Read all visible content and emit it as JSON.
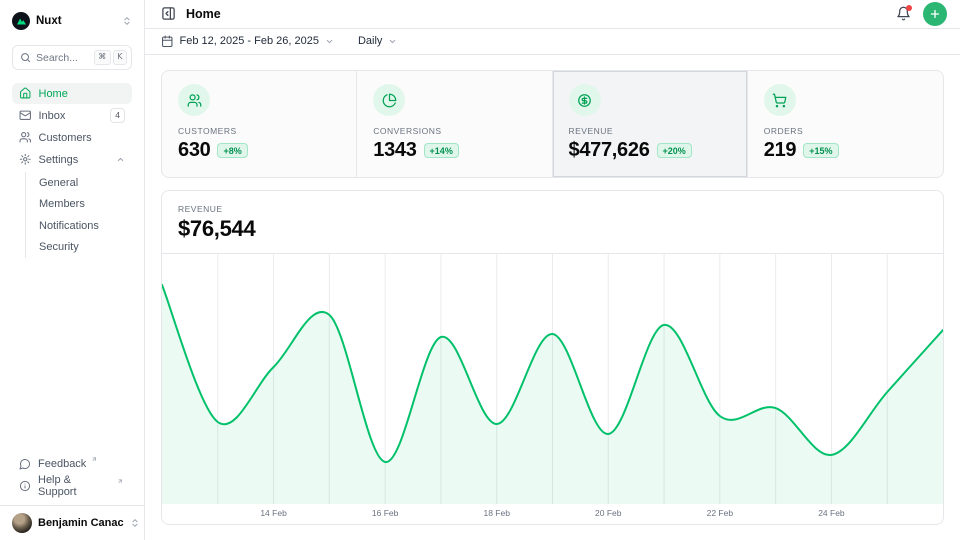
{
  "colors": {
    "primary": "#00C16A",
    "primary_text": "#00A155",
    "logo_bg": "#0E131B",
    "logo_green": "#00DC82",
    "badge_bg": "#E0F6EA",
    "notification_dot": "#EF4444",
    "border": "#E5E7EB",
    "selected_card_bg": "#F3F4F5"
  },
  "sidebar": {
    "workspace": {
      "name": "Nuxt"
    },
    "search": {
      "placeholder": "Search...",
      "kbd": [
        "⌘",
        "K"
      ]
    },
    "nav": [
      {
        "label": "Home",
        "icon": "home-icon",
        "active": true
      },
      {
        "label": "Inbox",
        "icon": "mail-icon",
        "badge": "4"
      },
      {
        "label": "Customers",
        "icon": "users-icon"
      },
      {
        "label": "Settings",
        "icon": "gear-icon",
        "expanded": true,
        "children": [
          "General",
          "Members",
          "Notifications",
          "Security"
        ]
      }
    ],
    "footer_links": [
      {
        "label": "Feedback",
        "icon": "chat-bubble-icon",
        "external": true
      },
      {
        "label": "Help & Support",
        "icon": "info-circle-icon",
        "external": true
      }
    ],
    "user": {
      "name": "Benjamin Canac"
    }
  },
  "header": {
    "title": "Home"
  },
  "toolbar": {
    "date_range": "Feb 12, 2025 - Feb 26, 2025",
    "period": "Daily"
  },
  "stats": [
    {
      "label": "CUSTOMERS",
      "value": "630",
      "change": "+8%",
      "icon": "users-icon",
      "selected": false
    },
    {
      "label": "CONVERSIONS",
      "value": "1343",
      "change": "+14%",
      "icon": "chart-pie-icon",
      "selected": false
    },
    {
      "label": "REVENUE",
      "value": "$477,626",
      "change": "+20%",
      "icon": "circle-dollar-icon",
      "selected": true
    },
    {
      "label": "ORDERS",
      "value": "219",
      "change": "+15%",
      "icon": "shopping-cart-icon",
      "selected": false
    }
  ],
  "chart": {
    "label": "REVENUE",
    "value": "$76,544"
  },
  "chart_data": {
    "type": "area",
    "title": "REVENUE",
    "current_value": "$76,544",
    "x": [
      "12 Feb",
      "13 Feb",
      "14 Feb",
      "15 Feb",
      "16 Feb",
      "17 Feb",
      "18 Feb",
      "19 Feb",
      "20 Feb",
      "21 Feb",
      "22 Feb",
      "23 Feb",
      "24 Feb",
      "25 Feb",
      "26 Feb"
    ],
    "values": [
      96400,
      36100,
      60300,
      83200,
      18500,
      73500,
      35200,
      74800,
      30800,
      78800,
      38700,
      42200,
      21600,
      49300,
      76544
    ],
    "ticks": [
      {
        "index": 2,
        "label": "14 Feb"
      },
      {
        "index": 4,
        "label": "16 Feb"
      },
      {
        "index": 6,
        "label": "18 Feb"
      },
      {
        "index": 8,
        "label": "20 Feb"
      },
      {
        "index": 10,
        "label": "22 Feb"
      },
      {
        "index": 12,
        "label": "24 Feb"
      }
    ],
    "ylim": [
      0,
      110000
    ],
    "xlabel": "",
    "ylabel": "",
    "grid": "vertical-daily",
    "legend": "none",
    "line_color": "#00C16A",
    "fill_color": "rgba(0,193,106,0.08)",
    "grid_color": "#e9ebee"
  }
}
